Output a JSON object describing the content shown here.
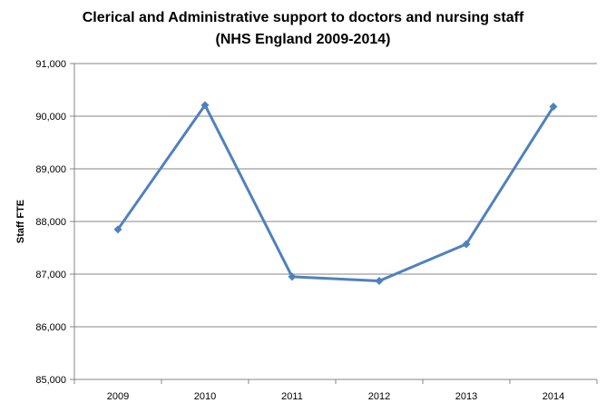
{
  "chart_data": {
    "type": "line",
    "title": "Clerical and Administrative support to doctors and nursing staff",
    "subtitle": "(NHS England 2009-2014)",
    "xlabel": "",
    "ylabel": "Staff FTE",
    "categories": [
      "2009",
      "2010",
      "2011",
      "2012",
      "2013",
      "2014"
    ],
    "series": [
      {
        "values": [
          87850,
          90210,
          86950,
          86870,
          87570,
          90180
        ],
        "color": "#4F81BD"
      }
    ],
    "ylim": [
      85000,
      91000
    ],
    "yticks": [
      85000,
      86000,
      87000,
      88000,
      89000,
      90000,
      91000
    ],
    "ytick_labels": [
      "85,000",
      "86,000",
      "87,000",
      "88,000",
      "89,000",
      "90,000",
      "91,000"
    ],
    "grid": true,
    "legend": "none",
    "marker": "diamond"
  }
}
